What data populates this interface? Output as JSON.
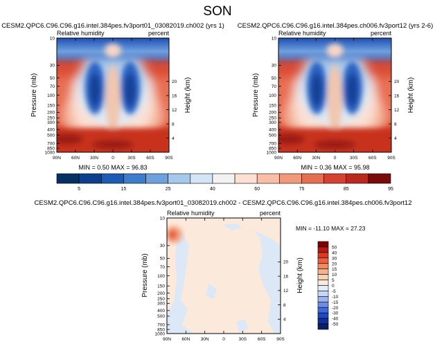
{
  "suptitle": "SON",
  "colors": {
    "rh_levels": [
      "#053061",
      "#0d3f8e",
      "#1e5bb5",
      "#3e7ccc",
      "#6fa0de",
      "#a6c8ec",
      "#d3e4f5",
      "#f2f2f2",
      "#fde0d2",
      "#f9bea6",
      "#f19a7b",
      "#e56f52",
      "#d54231",
      "#bb2a1f",
      "#7a0b0b"
    ],
    "diff_levels": [
      "#0b1f66",
      "#0f2f99",
      "#1e48c5",
      "#3f6ad8",
      "#6d8ce3",
      "#9eb3ee",
      "#c7d6f5",
      "#e3ecfa",
      "#fbeadc",
      "#f8d2b5",
      "#f4b38c",
      "#f08b60",
      "#e9613d",
      "#db3a20",
      "#b51a14",
      "#800000"
    ]
  },
  "chart_data": [
    {
      "type": "heatmap",
      "title": "CESM2.QPC6.C96.C96.g16.intel.384pes.fv3port01_03082019.ch002 (yrs 1)",
      "left_label": "Relative humidity",
      "right_label": "percent",
      "xlabel": "",
      "ylabel": "Pressure (mb)",
      "ylabel_right": "Height (km)",
      "x_ticks": [
        "90N",
        "60N",
        "30N",
        "0",
        "30S",
        "60S",
        "90S"
      ],
      "y_ticks": [
        "10",
        "30",
        "50",
        "70",
        "100",
        "150",
        "200",
        "250",
        "300",
        "400",
        "500",
        "700",
        "850",
        "1000"
      ],
      "y_ticks_right": [
        "20",
        "16",
        "12",
        "8",
        "4"
      ],
      "xlim": [
        90,
        -90
      ],
      "ylim": [
        1000,
        10
      ],
      "stats": "MIN =   0.50   MAX =  96.83",
      "min": 0.5,
      "max": 96.83
    },
    {
      "type": "heatmap",
      "title": "CESM2.QPC6.C96.C96.g16.intel.384pes.ch006.fv3port12 (yrs 2-6)",
      "left_label": "Relative humidity",
      "right_label": "percent",
      "xlabel": "",
      "ylabel": "Pressure (mb)",
      "ylabel_right": "Height (km)",
      "x_ticks": [
        "90N",
        "60N",
        "30N",
        "0",
        "30S",
        "60S",
        "90S"
      ],
      "y_ticks": [
        "10",
        "30",
        "50",
        "70",
        "100",
        "150",
        "200",
        "250",
        "300",
        "400",
        "500",
        "700",
        "850",
        "1000"
      ],
      "y_ticks_right": [
        "20",
        "16",
        "12",
        "8",
        "4"
      ],
      "xlim": [
        90,
        -90
      ],
      "ylim": [
        1000,
        10
      ],
      "stats": "MIN =   0.36   MAX =  95.98",
      "min": 0.36,
      "max": 95.98
    },
    {
      "type": "heatmap",
      "title": "CESM2.QPC6.C96.C96.g16.intel.384pes.fv3port01_03082019.ch002 - CESM2.QPC6.C96.C96.g16.intel.384pes.ch006.fv3port12",
      "left_label": "Relative humidity",
      "right_label": "percent",
      "xlabel": "",
      "ylabel": "Pressure (mb)",
      "ylabel_right": "Height (km)",
      "x_ticks": [
        "90N",
        "60N",
        "30N",
        "0",
        "30S",
        "60S",
        "90S"
      ],
      "y_ticks": [
        "10",
        "30",
        "50",
        "70",
        "100",
        "150",
        "200",
        "250",
        "300",
        "400",
        "500",
        "700",
        "850",
        "1000"
      ],
      "y_ticks_right": [
        "20",
        "16",
        "12",
        "8",
        "4"
      ],
      "xlim": [
        90,
        -90
      ],
      "ylim": [
        1000,
        10
      ],
      "stats": "MIN = -11.10   MAX =  27.23",
      "min": -11.1,
      "max": 27.23
    }
  ],
  "colorbar_rh": {
    "labels": [
      "5",
      "15",
      "25",
      "40",
      "60",
      "75",
      "85",
      "95"
    ]
  },
  "colorbar_diff": {
    "labels": [
      "50",
      "40",
      "30",
      "20",
      "15",
      "10",
      "5",
      "0",
      "-5",
      "-10",
      "-15",
      "-20",
      "-30",
      "-40",
      "-50"
    ]
  }
}
